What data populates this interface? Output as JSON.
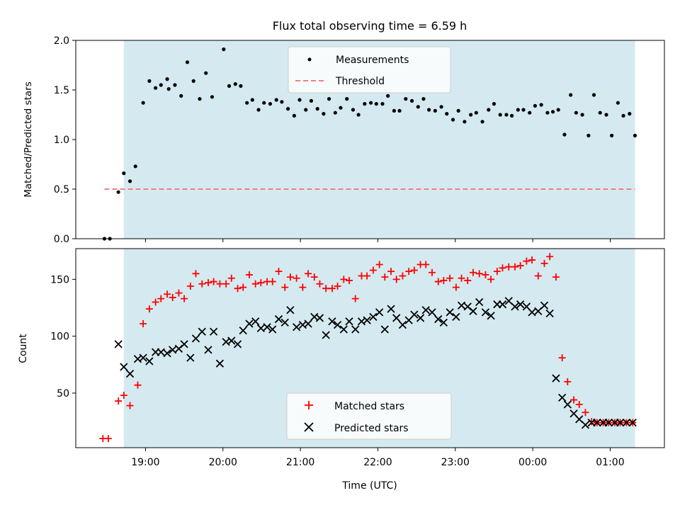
{
  "chart_data": [
    {
      "type": "scatter",
      "title": "Flux total observing time = 6.59 h",
      "xlabel": "",
      "ylabel": "Matched/Predicted stars",
      "xlim": [
        -0.9,
        6.7
      ],
      "ylim": [
        0,
        2.0
      ],
      "yticks": [
        0.0,
        0.5,
        1.0,
        1.5,
        2.0
      ],
      "ytick_labels": [
        "0.0",
        "0.5",
        "1.0",
        "1.5",
        "2.0"
      ],
      "shaded_span": [
        -0.28,
        6.32
      ],
      "shade_color": "#d5eaf0",
      "legend_position": "top-center",
      "series": [
        {
          "name": "Measurements",
          "marker": "dot",
          "color": "#000000",
          "x": [
            -0.53,
            -0.46,
            -0.35,
            -0.28,
            -0.2,
            -0.13,
            -0.03,
            0.05,
            0.13,
            0.2,
            0.28,
            0.3,
            0.38,
            0.46,
            0.54,
            0.62,
            0.7,
            0.78,
            0.86,
            1.01,
            1.08,
            1.16,
            1.23,
            1.31,
            1.38,
            1.46,
            1.53,
            1.61,
            1.69,
            1.76,
            1.84,
            1.92,
            1.99,
            2.07,
            2.14,
            2.22,
            2.3,
            2.37,
            2.45,
            2.52,
            2.6,
            2.68,
            2.75,
            2.83,
            2.91,
            2.98,
            3.06,
            3.13,
            3.21,
            3.28,
            3.36,
            3.44,
            3.52,
            3.59,
            3.66,
            3.74,
            3.82,
            3.89,
            3.97,
            4.04,
            4.12,
            4.2,
            4.27,
            4.35,
            4.43,
            4.5,
            4.58,
            4.66,
            4.73,
            4.81,
            4.88,
            4.96,
            5.03,
            5.11,
            5.19,
            5.26,
            5.33,
            5.41,
            5.49,
            5.56,
            5.64,
            5.72,
            5.79,
            5.87,
            5.95,
            6.02,
            6.1,
            6.17,
            6.25,
            6.32
          ],
          "y": [
            0.0,
            0.0,
            0.47,
            0.66,
            0.58,
            0.73,
            1.37,
            1.59,
            1.52,
            1.55,
            1.61,
            1.51,
            1.55,
            1.44,
            1.78,
            1.59,
            1.41,
            1.67,
            1.43,
            1.91,
            1.54,
            1.56,
            1.54,
            1.37,
            1.4,
            1.3,
            1.37,
            1.36,
            1.4,
            1.38,
            1.31,
            1.24,
            1.4,
            1.3,
            1.39,
            1.31,
            1.26,
            1.41,
            1.27,
            1.32,
            1.41,
            1.3,
            1.25,
            1.36,
            1.37,
            1.36,
            1.36,
            1.44,
            1.29,
            1.29,
            1.41,
            1.39,
            1.33,
            1.41,
            1.3,
            1.29,
            1.33,
            1.26,
            1.2,
            1.29,
            1.18,
            1.25,
            1.27,
            1.18,
            1.3,
            1.36,
            1.25,
            1.25,
            1.24,
            1.3,
            1.3,
            1.27,
            1.34,
            1.35,
            1.27,
            1.28,
            1.3,
            1.05,
            1.45,
            1.27,
            1.25,
            1.04,
            1.45,
            1.27,
            1.25,
            1.04,
            1.37,
            1.24,
            1.26,
            1.04
          ]
        },
        {
          "name": "Threshold",
          "marker": "dashed-line",
          "color": "#f08080",
          "x": [
            -0.53,
            6.32
          ],
          "y": [
            0.5,
            0.5
          ]
        }
      ]
    },
    {
      "type": "scatter",
      "title": "",
      "xlabel": "Time (UTC)",
      "ylabel": "Count",
      "xlim": [
        -0.9,
        6.7
      ],
      "ylim": [
        2,
        177
      ],
      "yticks": [
        50,
        100,
        150
      ],
      "ytick_labels": [
        "50",
        "100",
        "150"
      ],
      "xticks": [
        0,
        1,
        2,
        3,
        4,
        5,
        6
      ],
      "xtick_labels": [
        "19:00",
        "20:00",
        "21:00",
        "22:00",
        "23:00",
        "00:00",
        "01:00"
      ],
      "shaded_span": [
        -0.28,
        6.32
      ],
      "shade_color": "#d5eaf0",
      "legend_position": "bottom-center",
      "series": [
        {
          "name": "Matched stars",
          "marker": "plus",
          "color": "#ff0000",
          "x": [
            -0.55,
            -0.48,
            -0.35,
            -0.28,
            -0.2,
            -0.1,
            -0.03,
            0.05,
            0.13,
            0.2,
            0.28,
            0.35,
            0.43,
            0.5,
            0.58,
            0.65,
            0.73,
            0.81,
            0.88,
            0.96,
            1.04,
            1.11,
            1.19,
            1.26,
            1.34,
            1.42,
            1.49,
            1.57,
            1.64,
            1.72,
            1.8,
            1.87,
            1.95,
            2.03,
            2.1,
            2.18,
            2.25,
            2.33,
            2.41,
            2.48,
            2.56,
            2.63,
            2.71,
            2.79,
            2.86,
            2.94,
            3.02,
            3.09,
            3.17,
            3.24,
            3.32,
            3.4,
            3.47,
            3.55,
            3.62,
            3.7,
            3.78,
            3.85,
            3.93,
            4.01,
            4.08,
            4.16,
            4.23,
            4.31,
            4.39,
            4.46,
            4.54,
            4.61,
            4.69,
            4.77,
            4.84,
            4.92,
            4.99,
            5.07,
            5.15,
            5.22,
            5.3,
            5.38,
            5.45,
            5.53,
            5.6,
            5.68,
            5.76,
            5.83,
            5.91,
            5.98,
            6.06,
            6.13,
            6.21,
            6.29
          ],
          "y": [
            10,
            10,
            43,
            48,
            39,
            57,
            111,
            124,
            130,
            133,
            137,
            134,
            138,
            133,
            144,
            155,
            146,
            147,
            148,
            146,
            146,
            151,
            142,
            143,
            154,
            146,
            147,
            148,
            148,
            157,
            143,
            152,
            151,
            143,
            155,
            152,
            146,
            142,
            142,
            144,
            150,
            149,
            133,
            153,
            153,
            158,
            163,
            152,
            157,
            150,
            153,
            157,
            158,
            163,
            163,
            156,
            148,
            149,
            151,
            143,
            151,
            149,
            156,
            155,
            154,
            150,
            157,
            160,
            161,
            161,
            162,
            166,
            167,
            153,
            164,
            170,
            152,
            81,
            60,
            44,
            40,
            33,
            25,
            24,
            24,
            24,
            24,
            24,
            24,
            24
          ],
          "y_note": "last points tail near 24"
        },
        {
          "name": "Predicted stars",
          "marker": "x",
          "color": "#000000",
          "x": [
            -0.35,
            -0.28,
            -0.2,
            -0.1,
            -0.03,
            0.05,
            0.13,
            0.2,
            0.28,
            0.35,
            0.43,
            0.5,
            0.58,
            0.65,
            0.73,
            0.81,
            0.88,
            0.96,
            1.04,
            1.11,
            1.19,
            1.26,
            1.34,
            1.42,
            1.49,
            1.57,
            1.64,
            1.72,
            1.8,
            1.87,
            1.95,
            2.03,
            2.1,
            2.18,
            2.25,
            2.33,
            2.41,
            2.48,
            2.56,
            2.63,
            2.71,
            2.79,
            2.86,
            2.94,
            3.02,
            3.09,
            3.17,
            3.24,
            3.32,
            3.4,
            3.47,
            3.55,
            3.62,
            3.7,
            3.78,
            3.85,
            3.93,
            4.01,
            4.08,
            4.16,
            4.23,
            4.31,
            4.39,
            4.46,
            4.54,
            4.61,
            4.69,
            4.77,
            4.84,
            4.92,
            4.99,
            5.07,
            5.15,
            5.22,
            5.3,
            5.38,
            5.45,
            5.53,
            5.6,
            5.68,
            5.76,
            5.83,
            5.91,
            5.98,
            6.06,
            6.13,
            6.21,
            6.29
          ],
          "y": [
            93,
            73,
            67,
            80,
            81,
            78,
            86,
            86,
            85,
            88,
            89,
            93,
            81,
            98,
            104,
            88,
            104,
            76,
            95,
            96,
            93,
            105,
            111,
            113,
            107,
            108,
            106,
            115,
            112,
            123,
            108,
            110,
            111,
            117,
            116,
            101,
            113,
            110,
            106,
            113,
            106,
            113,
            114,
            117,
            121,
            106,
            124,
            116,
            110,
            114,
            119,
            116,
            123,
            121,
            115,
            112,
            121,
            117,
            127,
            126,
            122,
            130,
            121,
            118,
            128,
            128,
            131,
            126,
            128,
            126,
            121,
            122,
            127,
            120,
            63,
            46,
            40,
            32,
            27,
            22,
            24,
            24,
            24,
            24,
            24,
            24,
            24,
            24
          ]
        }
      ]
    }
  ]
}
